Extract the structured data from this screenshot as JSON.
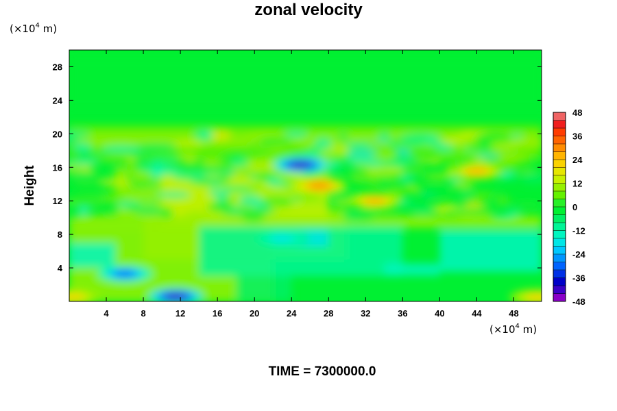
{
  "chart_data": {
    "type": "heatmap",
    "title": "zonal velocity",
    "ylabel": "Height",
    "xlabel": "",
    "x_unit": {
      "prefix": "(×10",
      "exp": "4",
      "suffix": " m)"
    },
    "y_unit": {
      "prefix": "(×10",
      "exp": "4",
      "suffix": " m)"
    },
    "xlim": [
      0,
      51
    ],
    "ylim": [
      0,
      30
    ],
    "x_ticks": [
      4,
      8,
      12,
      16,
      20,
      24,
      28,
      32,
      36,
      40,
      44,
      48
    ],
    "y_ticks": [
      4,
      8,
      12,
      16,
      20,
      24,
      28
    ],
    "colorbar": {
      "min": -48,
      "max": 48,
      "step": 4,
      "labels": [
        48,
        36,
        24,
        12,
        0,
        -12,
        -24,
        -36,
        -48
      ],
      "colors": [
        "#8a00c8",
        "#3a00c8",
        "#0000c8",
        "#0030e6",
        "#0064ff",
        "#0096ff",
        "#00c8ff",
        "#00e6e6",
        "#00f5c0",
        "#00f596",
        "#00f064",
        "#00f032",
        "#28f028",
        "#64f000",
        "#96f000",
        "#c8f000",
        "#e6e600",
        "#fad200",
        "#ffb400",
        "#ff8c00",
        "#ff6400",
        "#ff3c00",
        "#f01e1e",
        "#f06464"
      ]
    },
    "field_features": [
      {
        "x": 25,
        "y": 16.3,
        "value": -44,
        "desc": "strong negative core"
      },
      {
        "x": 11.5,
        "y": 0.6,
        "value": -44,
        "desc": "negative core near surface"
      },
      {
        "x": 6,
        "y": 3.3,
        "value": -32
      },
      {
        "x": 27,
        "y": 13.8,
        "value": 30
      },
      {
        "x": 33,
        "y": 12,
        "value": 26
      },
      {
        "x": 0.5,
        "y": 0.5,
        "value": 22
      },
      {
        "x": 50.5,
        "y": 0.5,
        "value": 22
      },
      {
        "x": 44,
        "y": 15.5,
        "value": 24
      },
      {
        "x": 23,
        "y": 7.5,
        "value": -18
      }
    ]
  },
  "footer": {
    "time_label": "TIME = 7300000.0"
  }
}
